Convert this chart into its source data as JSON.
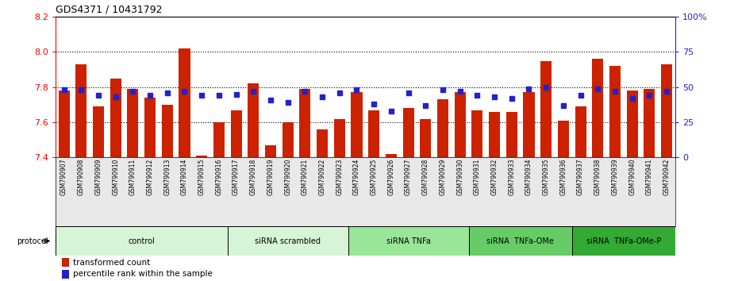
{
  "title": "GDS4371 / 10431792",
  "samples": [
    "GSM790907",
    "GSM790908",
    "GSM790909",
    "GSM790910",
    "GSM790911",
    "GSM790912",
    "GSM790913",
    "GSM790914",
    "GSM790915",
    "GSM790916",
    "GSM790917",
    "GSM790918",
    "GSM790919",
    "GSM790920",
    "GSM790921",
    "GSM790922",
    "GSM790923",
    "GSM790924",
    "GSM790925",
    "GSM790926",
    "GSM790927",
    "GSM790928",
    "GSM790929",
    "GSM790930",
    "GSM790931",
    "GSM790932",
    "GSM790933",
    "GSM790934",
    "GSM790935",
    "GSM790936",
    "GSM790937",
    "GSM790938",
    "GSM790939",
    "GSM790940",
    "GSM790941",
    "GSM790942"
  ],
  "bar_values": [
    7.78,
    7.93,
    7.69,
    7.85,
    7.79,
    7.74,
    7.7,
    8.02,
    7.41,
    7.6,
    7.67,
    7.82,
    7.47,
    7.6,
    7.79,
    7.56,
    7.62,
    7.77,
    7.67,
    7.42,
    7.68,
    7.62,
    7.73,
    7.77,
    7.67,
    7.66,
    7.66,
    7.77,
    7.95,
    7.61,
    7.69,
    7.96,
    7.92,
    7.78,
    7.79,
    7.93
  ],
  "percentile_values": [
    48,
    48,
    44,
    43,
    47,
    44,
    46,
    47,
    44,
    44,
    45,
    47,
    41,
    39,
    47,
    43,
    46,
    48,
    38,
    33,
    46,
    37,
    48,
    47,
    44,
    43,
    42,
    49,
    50,
    37,
    44,
    49,
    47,
    42,
    44,
    47
  ],
  "groups": [
    {
      "label": "control",
      "start": 0,
      "end": 9,
      "color": "#d6f5d6"
    },
    {
      "label": "siRNA scrambled",
      "start": 10,
      "end": 16,
      "color": "#d6f5d6"
    },
    {
      "label": "siRNA TNFa",
      "start": 17,
      "end": 23,
      "color": "#99e699"
    },
    {
      "label": "siRNA  TNFa-OMe",
      "start": 24,
      "end": 29,
      "color": "#66cc66"
    },
    {
      "label": "siRNA  TNFa-OMe-P",
      "start": 30,
      "end": 35,
      "color": "#33aa33"
    }
  ],
  "ylim_left": [
    7.4,
    8.2
  ],
  "ylim_right": [
    0,
    100
  ],
  "yticks_left": [
    7.4,
    7.6,
    7.8,
    8.0,
    8.2
  ],
  "yticks_right": [
    0,
    25,
    50,
    75,
    100
  ],
  "ytick_labels_right": [
    "0",
    "25",
    "50",
    "75",
    "100%"
  ],
  "bar_color": "#cc2200",
  "percentile_color": "#2222cc",
  "bar_bottom": 7.4,
  "protocol_label": "protocol",
  "bg_color": "#e8e8e8"
}
